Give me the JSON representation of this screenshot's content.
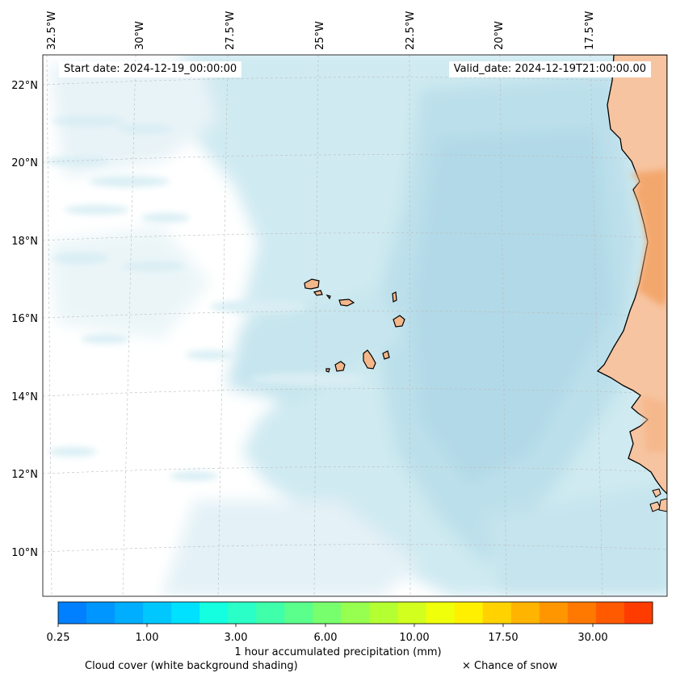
{
  "map": {
    "region": "Cape Verde and West African coast",
    "start_date": "Start date: 2024-12-19_00:00:00",
    "valid_date": "Valid_date: 2024-12-19T21:00:00.00",
    "lon_labels": [
      "32.5°W",
      "30°W",
      "27.5°W",
      "25°W",
      "22.5°W",
      "20°W",
      "17.5°W"
    ],
    "lat_labels": [
      "22°N",
      "20°N",
      "18°N",
      "16°N",
      "14°N",
      "12°N",
      "10°N"
    ],
    "gridlines": "on",
    "colors": {
      "ocean_cloud": "#add8e6",
      "land": "#f4a460",
      "coastline": "#000000"
    }
  },
  "colorbar": {
    "title": "1 hour accumulated precipitation (mm)",
    "tick_labels": [
      "0.25",
      "1.00",
      "3.00",
      "6.00",
      "10.00",
      "17.50",
      "30.00"
    ],
    "colors": [
      "#0080ff",
      "#0096ff",
      "#00aeff",
      "#00c8ff",
      "#00e0ff",
      "#14ffe0",
      "#2affc8",
      "#40ffaa",
      "#5aff8c",
      "#78ff6e",
      "#96ff50",
      "#b4ff32",
      "#d2ff1e",
      "#f0ff0a",
      "#fff000",
      "#ffd200",
      "#ffb400",
      "#ff9600",
      "#ff7800",
      "#ff5a00",
      "#ff3c00"
    ]
  },
  "legend": {
    "cloud": "Cloud cover (white background shading)",
    "snow": "× Chance of snow"
  }
}
